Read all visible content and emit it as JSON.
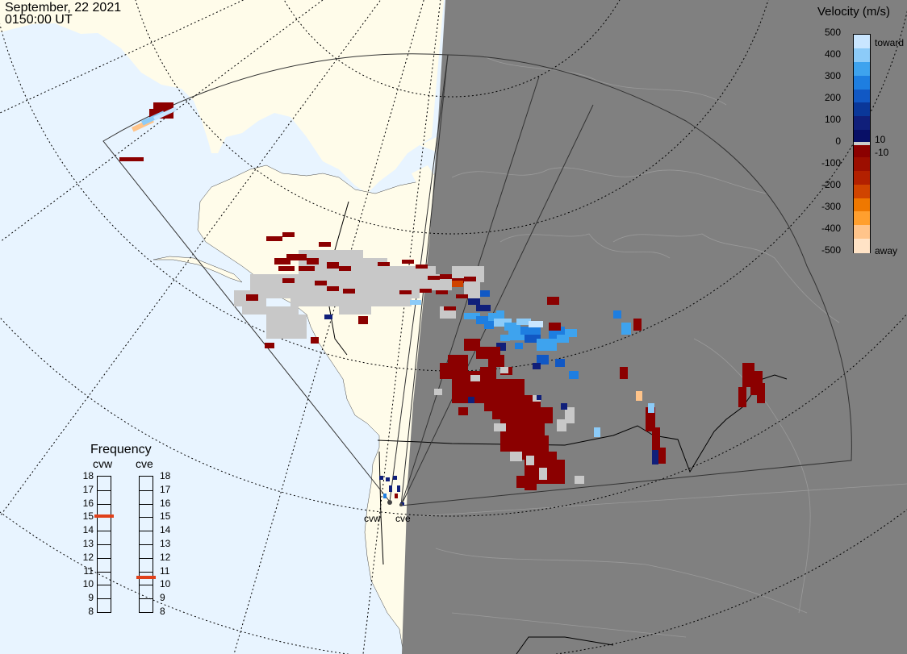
{
  "header": {
    "date": "September, 22 2021",
    "time": "0150:00 UT"
  },
  "colorbar": {
    "title": "Velocity (m/s)",
    "ticks": [
      "500",
      "400",
      "300",
      "200",
      "100",
      "0",
      "-100",
      "-200",
      "-300",
      "-400",
      "-500"
    ],
    "extra_ticks": [
      "10",
      "-10"
    ],
    "toward_label": "toward",
    "away_label": "away",
    "colors": [
      "#c9e6ff",
      "#8ccbf8",
      "#3ea3ee",
      "#1e7ee0",
      "#1158c4",
      "#0a3799",
      "#101f7a",
      "#080f66",
      "#8b0000",
      "#9c0e00",
      "#b32000",
      "#d04400",
      "#ef7800",
      "#ff9f2e",
      "#ffc48a",
      "#ffe3c6"
    ]
  },
  "frequency": {
    "title": "Frequency",
    "radars": [
      {
        "name": "cvw",
        "value_mhz": 15.0
      },
      {
        "name": "cve",
        "value_mhz": 10.5
      }
    ],
    "scale": [
      "18",
      "17",
      "16",
      "15",
      "14",
      "13",
      "12",
      "11",
      "10",
      "9",
      "8"
    ],
    "marker_color": "#e0401a"
  },
  "map": {
    "land_color": "#fffcea",
    "ocean_color": "#e8f4ff",
    "night_color": "#808080",
    "ground_scatter_color": "#c8c8c8",
    "radar_sites": [
      "cvw",
      "cve"
    ]
  }
}
